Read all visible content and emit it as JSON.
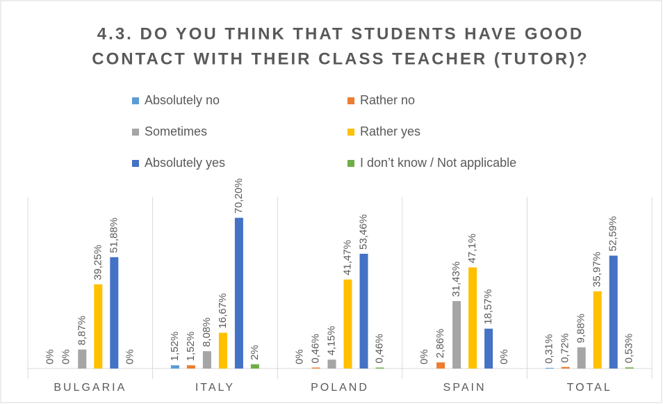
{
  "chart_data": {
    "type": "bar",
    "title": [
      "4.3. DO YOU THINK THAT STUDENTS HAVE GOOD",
      "CONTACT WITH THEIR CLASS TEACHER (TUTOR)?"
    ],
    "categories": [
      "BULGARIA",
      "ITALY",
      "POLAND",
      "SPAIN",
      "TOTAL"
    ],
    "ylim": [
      0,
      80
    ],
    "series": [
      {
        "name": "Absolutely no",
        "color": "#5b9bd5",
        "values": [
          0,
          1.52,
          0,
          0,
          0.31
        ],
        "value_labels": [
          "0%",
          "1,52%",
          "0%",
          "0%",
          "0,31%"
        ]
      },
      {
        "name": "Rather no",
        "color": "#ed7d31",
        "values": [
          0,
          1.52,
          0.46,
          2.86,
          0.72
        ],
        "value_labels": [
          "0%",
          "1,52%",
          "0,46%",
          "2,86%",
          "0,72%"
        ]
      },
      {
        "name": "Sometimes",
        "color": "#a5a5a5",
        "values": [
          8.87,
          8.08,
          4.15,
          31.43,
          9.88
        ],
        "value_labels": [
          "8,87%",
          "8,08%",
          "4,15%",
          "31,43%",
          "9,88%"
        ]
      },
      {
        "name": "Rather yes",
        "color": "#ffc000",
        "values": [
          39.25,
          16.67,
          41.47,
          47.1,
          35.97
        ],
        "value_labels": [
          "39,25%",
          "16,67%",
          "41,47%",
          "47,1%",
          "35,97%"
        ]
      },
      {
        "name": "Absolutely yes",
        "color": "#4472c4",
        "values": [
          51.88,
          70.2,
          53.46,
          18.57,
          52.59
        ],
        "value_labels": [
          "51,88%",
          "70,20%",
          "53,46%",
          "18,57%",
          "52,59%"
        ]
      },
      {
        "name": "I don’t know / Not applicable",
        "color": "#70ad47",
        "values": [
          0,
          2,
          0.46,
          0,
          0.53
        ],
        "value_labels": [
          "0%",
          "2%",
          "0,46%",
          "0%",
          "0,53%"
        ]
      }
    ]
  }
}
